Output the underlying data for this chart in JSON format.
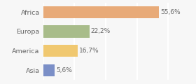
{
  "categories": [
    "Asia",
    "America",
    "Europa",
    "Africa"
  ],
  "values": [
    5.6,
    16.7,
    22.2,
    55.6
  ],
  "labels": [
    "5,6%",
    "16,7%",
    "22,2%",
    "55,6%"
  ],
  "bar_colors": [
    "#7b8fc7",
    "#f0c870",
    "#a8bc8a",
    "#e8aa78"
  ],
  "xlim": [
    0,
    62
  ],
  "background_color": "#f7f7f7",
  "bar_height": 0.62,
  "label_fontsize": 6.5,
  "tick_fontsize": 6.8,
  "grid_color": "#ffffff",
  "grid_linewidth": 1.5,
  "label_color": "#666666",
  "tick_color": "#666666"
}
